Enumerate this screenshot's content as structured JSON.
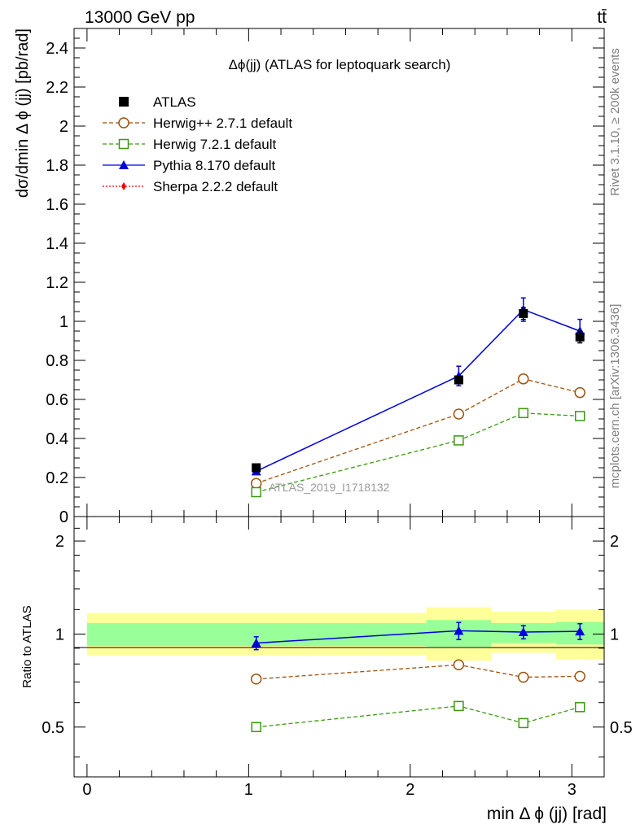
{
  "header": {
    "energy_label": "13000 GeV pp",
    "process_label": "tt̄"
  },
  "side": {
    "rivet_label": "Rivet 3.1.10, ≥ 200k events",
    "mcplots_label": "mcplots.cern.ch [arXiv:1306.3436]"
  },
  "colors": {
    "atlas": "#000000",
    "herwigpp": "#a0520f",
    "herwig7": "#3a9a10",
    "pythia": "#0000dd",
    "sherpa": "#ee0000",
    "band_inner": "#99ff99",
    "band_outer": "#ffff99"
  },
  "chart_data": [
    {
      "type": "scatter",
      "title": "Δϕ(jj) (ATLAS for leptoquark search)",
      "ylabel": "dσ/dmin Δ ϕ (jj) [pb/rad]",
      "xlabel": "",
      "xlim": [
        -0.08,
        3.2
      ],
      "ylim": [
        0,
        2.5
      ],
      "yticks": [
        0,
        0.2,
        0.4,
        0.6,
        0.8,
        1,
        1.2,
        1.4,
        1.6,
        1.8,
        2,
        2.2,
        2.4
      ],
      "ytick_labels": [
        "0",
        "0.2",
        "0.4",
        "0.6",
        "0.8",
        "1",
        "1.2",
        "1.4",
        "1.6",
        "1.8",
        "2",
        "2.2",
        "2.4"
      ],
      "legend_position": "top-left",
      "watermark": "ATLAS_2019_I1718132",
      "x": [
        1.047,
        2.3,
        2.7,
        3.05
      ],
      "bins": [
        [
          0,
          2.1
        ],
        [
          2.1,
          2.5
        ],
        [
          2.5,
          2.9
        ],
        [
          2.9,
          3.2
        ]
      ],
      "series": [
        {
          "name": "ATLAS",
          "key": "atlas",
          "values": [
            0.25,
            0.7,
            1.04,
            0.92
          ],
          "errors": [
            0.012,
            0.02,
            0.03,
            0.03
          ]
        },
        {
          "name": "Herwig++ 2.7.1 default",
          "key": "herwigpp",
          "values": [
            0.17,
            0.525,
            0.705,
            0.635
          ]
        },
        {
          "name": "Herwig 7.2.1 default",
          "key": "herwig7",
          "values": [
            0.125,
            0.39,
            0.53,
            0.515
          ]
        },
        {
          "name": "Pythia 8.170 default",
          "key": "pythia",
          "values": [
            0.232,
            0.72,
            1.06,
            0.95
          ],
          "errors": [
            0.01,
            0.05,
            0.06,
            0.06
          ]
        },
        {
          "name": "Sherpa 2.2.2 default",
          "key": "sherpa",
          "values": []
        }
      ]
    },
    {
      "type": "scatter",
      "title": "",
      "ylabel": "Ratio to ATLAS",
      "xlabel": "min Δ ϕ (jj) [rad]",
      "xlim": [
        -0.08,
        3.2
      ],
      "ylim": [
        0.345,
        2.4
      ],
      "log_y": true,
      "yticks": [
        0.5,
        1,
        2
      ],
      "ytick_labels": [
        "0.5",
        "1",
        "2"
      ],
      "xticks": [
        0,
        1,
        2,
        3
      ],
      "xtick_labels": [
        "0",
        "1",
        "2",
        "3"
      ],
      "x": [
        1.047,
        2.3,
        2.7,
        3.05
      ],
      "bands": {
        "inner": [
          [
            0.915,
            1.085
          ],
          [
            0.91,
            1.11
          ],
          [
            0.935,
            1.085
          ],
          [
            0.925,
            1.095
          ]
        ],
        "outer": [
          [
            0.855,
            1.17
          ],
          [
            0.82,
            1.22
          ],
          [
            0.87,
            1.18
          ],
          [
            0.83,
            1.2
          ]
        ]
      },
      "series": [
        {
          "name": "Herwig++ 2.7.1 default",
          "key": "herwigpp",
          "values": [
            0.715,
            0.795,
            0.725,
            0.73
          ]
        },
        {
          "name": "Herwig 7.2.1 default",
          "key": "herwig7",
          "values": [
            0.5,
            0.585,
            0.515,
            0.58
          ]
        },
        {
          "name": "Pythia 8.170 default",
          "key": "pythia",
          "values": [
            0.935,
            1.025,
            1.015,
            1.02
          ],
          "errors": [
            0.045,
            0.065,
            0.05,
            0.06
          ]
        }
      ]
    }
  ]
}
